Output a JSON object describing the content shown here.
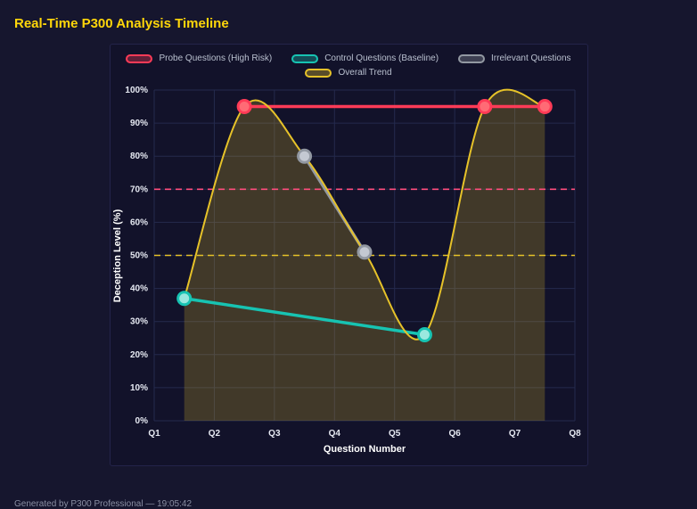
{
  "page": {
    "title": "Real-Time P300 Analysis Timeline",
    "footer": "Generated by P300 Professional — 19:05:42"
  },
  "theme": {
    "background": "#16162e",
    "panel_background": "#12122a",
    "title_color": "#ffd60a",
    "grid_color": "#242a4d",
    "tick_text_color": "#e6e9f2"
  },
  "chart_data": {
    "type": "line",
    "xlabel": "Question Number",
    "ylabel": "Deception Level (%)",
    "x_tick_labels": [
      "Q1",
      "Q2",
      "Q3",
      "Q4",
      "Q5",
      "Q6",
      "Q7",
      "Q8"
    ],
    "x_range": [
      1,
      8
    ],
    "ylim": [
      0,
      100
    ],
    "y_tick_step": 10,
    "y_tick_suffix": "%",
    "grid": true,
    "legend_position": "top",
    "series": [
      {
        "name": "Probe Questions (High Risk)",
        "color": "#ff3b57",
        "marker_fill": "#ff6b75",
        "x": [
          2.5,
          6.5,
          7.5
        ],
        "values": [
          95,
          95,
          95
        ],
        "width": 3.5,
        "smooth": false,
        "markers": true
      },
      {
        "name": "Control Questions (Baseline)",
        "color": "#17c3b2",
        "marker_fill": "#9ae8df",
        "x": [
          1.5,
          5.5
        ],
        "values": [
          37,
          26
        ],
        "width": 3.5,
        "smooth": false,
        "markers": true
      },
      {
        "name": "Irrelevant Questions",
        "color": "#9298a2",
        "marker_fill": "#c4c9d2",
        "x": [
          3.5,
          4.5
        ],
        "values": [
          80,
          51
        ],
        "width": 3.5,
        "smooth": false,
        "markers": true
      },
      {
        "name": "Overall Trend",
        "color": "#e6c229",
        "x": [
          1.5,
          2.5,
          3.5,
          4.5,
          5.5,
          6.5,
          7.5
        ],
        "values": [
          37,
          95,
          80,
          51,
          26,
          95,
          95
        ],
        "width": 2,
        "smooth": true,
        "markers": false,
        "area": true,
        "area_opacity": 0.22
      }
    ],
    "reference_lines": [
      {
        "value": 70,
        "color": "#ff4d7d",
        "style": "dashed"
      },
      {
        "value": 50,
        "color": "#e6c229",
        "style": "dashed"
      }
    ]
  }
}
